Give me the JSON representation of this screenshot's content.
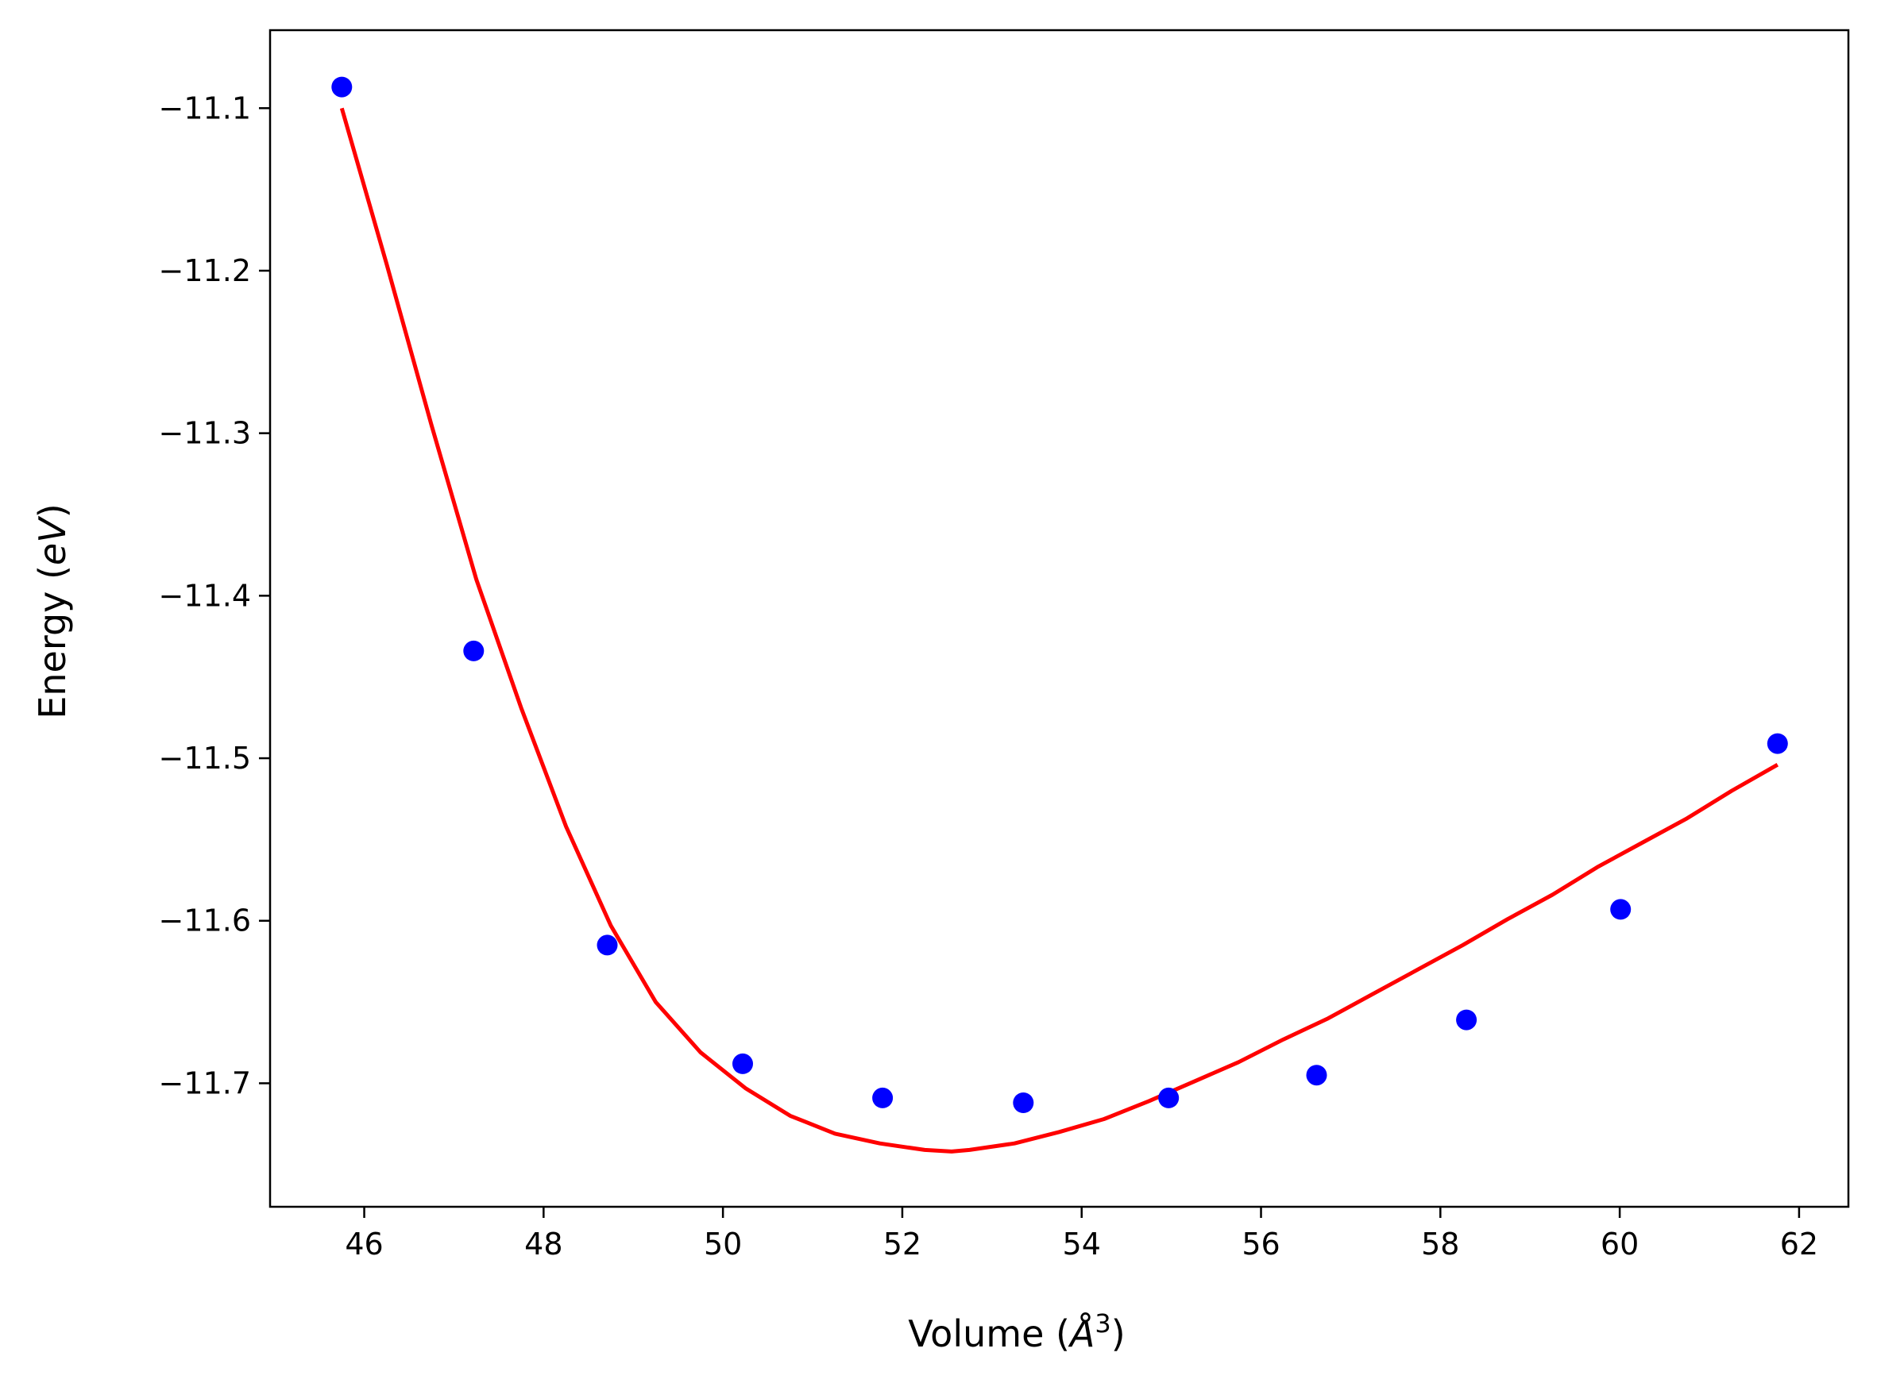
{
  "chart_data": {
    "type": "scatter",
    "title": "",
    "xlabel": "Volume (",
    "xlabel_symbol": "Å",
    "xlabel_exp": "3",
    "xlabel_close": ")",
    "ylabel": "Energy (",
    "ylabel_unit": "eV",
    "ylabel_close": ")",
    "xlim": [
      44.95,
      62.55
    ],
    "ylim": [
      -11.776,
      -11.052
    ],
    "x_ticks": [
      46,
      48,
      50,
      52,
      54,
      56,
      58,
      60,
      62
    ],
    "x_tick_labels": [
      "46",
      "48",
      "50",
      "52",
      "54",
      "56",
      "58",
      "60",
      "62"
    ],
    "y_ticks": [
      -11.1,
      -11.2,
      -11.3,
      -11.4,
      -11.5,
      -11.6,
      -11.7
    ],
    "y_tick_labels": [
      "−11.1",
      "−11.2",
      "−11.3",
      "−11.4",
      "−11.5",
      "−11.6",
      "−11.7"
    ],
    "grid": false,
    "series": [
      {
        "kind": "points",
        "color": "#0000ff",
        "x": [
          45.75,
          47.22,
          48.71,
          50.22,
          51.78,
          53.35,
          54.97,
          56.62,
          58.29,
          60.01,
          61.76
        ],
        "y": [
          -11.087,
          -11.434,
          -11.615,
          -11.688,
          -11.709,
          -11.712,
          -11.709,
          -11.695,
          -11.661,
          -11.593,
          -11.491
        ]
      },
      {
        "kind": "fit-line",
        "color": "#ff0000",
        "x": [
          45.75,
          46.25,
          46.75,
          47.25,
          47.75,
          48.25,
          48.75,
          49.25,
          49.75,
          50.25,
          50.75,
          51.25,
          51.75,
          52.25,
          52.55,
          52.75,
          53.25,
          53.75,
          54.25,
          54.75,
          55.25,
          55.75,
          56.25,
          56.75,
          57.25,
          57.75,
          58.25,
          58.75,
          59.25,
          59.75,
          60.25,
          60.75,
          61.25,
          61.76
        ],
        "y": [
          -11.1,
          -11.196,
          -11.295,
          -11.39,
          -11.469,
          -11.542,
          -11.603,
          -11.65,
          -11.681,
          -11.703,
          -11.72,
          -11.731,
          -11.737,
          -11.741,
          -11.742,
          -11.741,
          -11.737,
          -11.73,
          -11.722,
          -11.711,
          -11.699,
          -11.687,
          -11.673,
          -11.66,
          -11.645,
          -11.63,
          -11.615,
          -11.599,
          -11.584,
          -11.567,
          -11.552,
          -11.537,
          -11.52,
          -11.504
        ]
      }
    ]
  }
}
